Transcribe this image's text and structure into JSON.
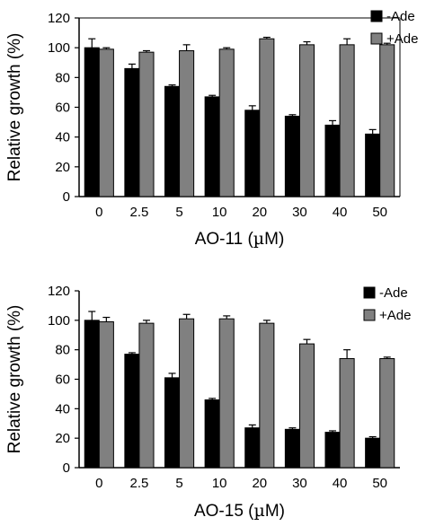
{
  "chart_data": [
    {
      "type": "bar",
      "categories": [
        "0",
        "2.5",
        "5",
        "10",
        "20",
        "30",
        "40",
        "50"
      ],
      "series": [
        {
          "name": "-Ade",
          "color": "#000000",
          "values": [
            100,
            86,
            74,
            67,
            58,
            54,
            48,
            42
          ],
          "errors": [
            6,
            3,
            1,
            1,
            3,
            1,
            3,
            3
          ]
        },
        {
          "name": "+Ade",
          "color": "#808080",
          "values": [
            99,
            97,
            98,
            99,
            106,
            102,
            102,
            102
          ],
          "errors": [
            1,
            1,
            4,
            1,
            1,
            2,
            4,
            1
          ]
        }
      ],
      "ylabel": "Relative growth (%)",
      "xlabel_main": "AO-11 (",
      "xlabel_mu": "µ",
      "xlabel_end": "M)",
      "ylim": [
        0,
        120
      ],
      "yticks": [
        "0",
        "20",
        "40",
        "60",
        "80",
        "100",
        "120"
      ],
      "legend_position": "top-right"
    },
    {
      "type": "bar",
      "categories": [
        "0",
        "2.5",
        "5",
        "10",
        "20",
        "30",
        "40",
        "50"
      ],
      "series": [
        {
          "name": "-Ade",
          "color": "#000000",
          "values": [
            100,
            77,
            61,
            46,
            27,
            26,
            24,
            20
          ],
          "errors": [
            6,
            1,
            3,
            1,
            2,
            1,
            1,
            1
          ]
        },
        {
          "name": "+Ade",
          "color": "#808080",
          "values": [
            99,
            98,
            101,
            101,
            98,
            84,
            74,
            74
          ],
          "errors": [
            3,
            2,
            3,
            2,
            2,
            3,
            6,
            1
          ]
        }
      ],
      "ylabel": "Relative growth (%)",
      "xlabel_main": "AO-15 (",
      "xlabel_mu": "µ",
      "xlabel_end": "M)",
      "ylim": [
        0,
        120
      ],
      "yticks": [
        "0",
        "20",
        "40",
        "60",
        "80",
        "100",
        "120"
      ],
      "legend_position": "top-right"
    }
  ]
}
